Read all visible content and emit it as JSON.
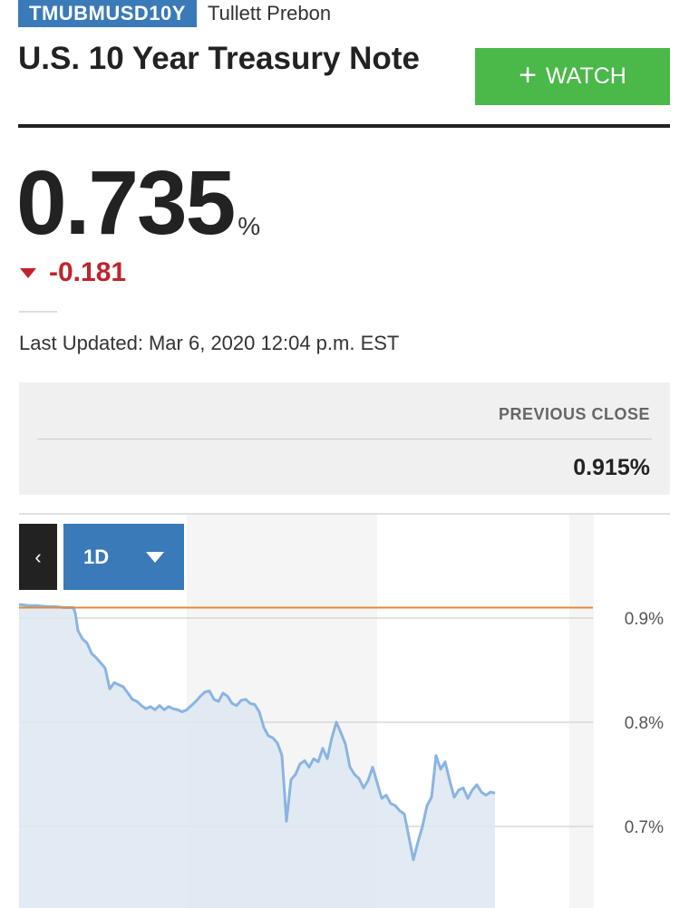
{
  "header": {
    "ticker": "TMUBMUSD10Y",
    "exchange": "Tullett Prebon",
    "title": "U.S. 10 Year Treasury Note",
    "watch_label": "WATCH"
  },
  "quote": {
    "price": "0.735",
    "unit": "%",
    "change": "-0.181",
    "updated_label": "Last Updated:",
    "updated_time": "Mar 6, 2020 12:04 p.m. EST"
  },
  "previous_close": {
    "label": "PREVIOUS CLOSE",
    "value": "0.915%"
  },
  "chart_controls": {
    "back_glyph": "‹",
    "range": "1D"
  },
  "colors": {
    "accent_blue": "#3a7ab8",
    "watch_green": "#4bb84a",
    "change_red": "#c0232b",
    "line_blue": "#8ab4e2",
    "area_fill": "#dde8f1",
    "prev_close_line": "#e08a3c"
  },
  "chart_data": {
    "type": "area",
    "yticks": [
      "0.9%",
      "0.8%",
      "0.7%"
    ],
    "ylim": [
      0.64,
      0.95
    ],
    "previous_close_value": 0.91,
    "x": [
      0,
      10,
      20,
      30,
      40,
      50,
      60,
      62,
      65,
      70,
      75,
      80,
      85,
      90,
      95,
      100,
      105,
      110,
      115,
      120,
      125,
      130,
      135,
      140,
      145,
      150,
      155,
      160,
      165,
      170,
      175,
      180,
      185,
      190,
      195,
      200,
      205,
      210,
      215,
      220,
      225,
      230,
      235,
      240,
      245,
      250,
      255,
      260,
      265,
      270,
      275,
      280,
      285,
      290,
      295,
      300,
      305,
      310,
      315,
      320,
      325,
      330,
      335,
      340,
      345,
      350,
      355,
      360,
      365,
      370,
      375,
      380,
      385,
      390,
      395,
      400,
      405,
      410,
      415,
      420,
      425,
      430,
      435,
      440,
      445,
      450,
      455,
      460,
      465,
      470,
      475,
      480,
      485,
      490,
      495,
      500,
      505,
      510,
      515,
      520,
      525
    ],
    "values": [
      0.913,
      0.912,
      0.912,
      0.911,
      0.911,
      0.91,
      0.91,
      0.905,
      0.888,
      0.88,
      0.876,
      0.866,
      0.862,
      0.857,
      0.852,
      0.832,
      0.838,
      0.836,
      0.834,
      0.828,
      0.822,
      0.82,
      0.816,
      0.813,
      0.815,
      0.812,
      0.816,
      0.812,
      0.815,
      0.813,
      0.812,
      0.81,
      0.812,
      0.816,
      0.82,
      0.825,
      0.829,
      0.83,
      0.822,
      0.82,
      0.828,
      0.825,
      0.818,
      0.816,
      0.821,
      0.822,
      0.818,
      0.817,
      0.81,
      0.795,
      0.787,
      0.785,
      0.78,
      0.768,
      0.705,
      0.745,
      0.75,
      0.76,
      0.763,
      0.757,
      0.765,
      0.762,
      0.775,
      0.765,
      0.785,
      0.8,
      0.79,
      0.779,
      0.757,
      0.75,
      0.746,
      0.737,
      0.744,
      0.757,
      0.742,
      0.727,
      0.73,
      0.722,
      0.72,
      0.715,
      0.712,
      0.69,
      0.668,
      0.685,
      0.7,
      0.72,
      0.728,
      0.768,
      0.755,
      0.762,
      0.744,
      0.728,
      0.735,
      0.737,
      0.727,
      0.735,
      0.74,
      0.733,
      0.73,
      0.733,
      0.732
    ]
  }
}
